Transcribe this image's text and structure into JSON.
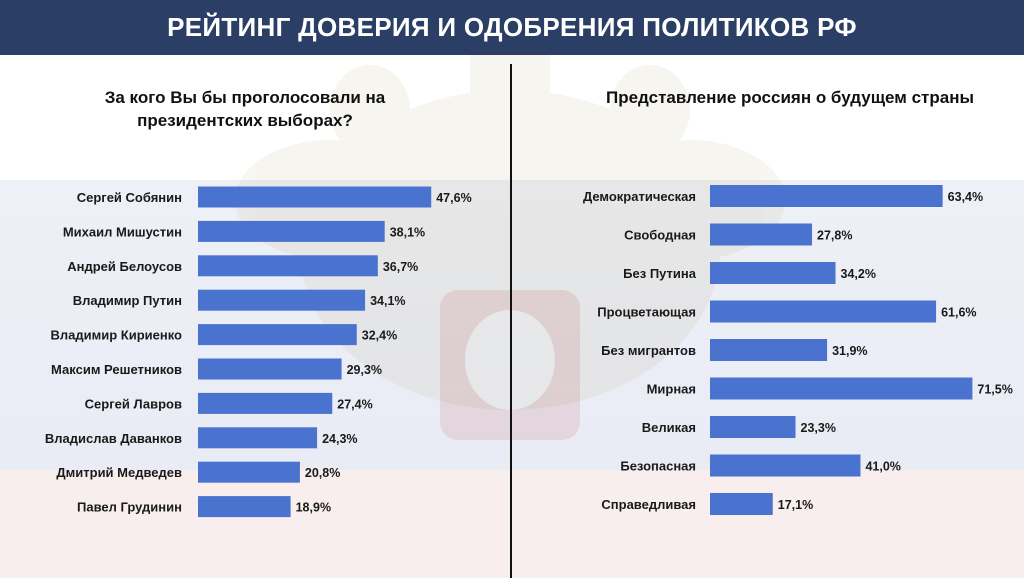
{
  "header": {
    "title": "РЕЙТИНГ ДОВЕРИЯ И ОДОБРЕНИЯ ПОЛИТИКОВ РФ"
  },
  "colors": {
    "header_bg": "#2b3f66",
    "bar": "#4a73cf",
    "text": "#1a1a1a"
  },
  "chart_data": [
    {
      "type": "bar",
      "orientation": "horizontal",
      "title": "За кого Вы бы проголосовали на президентских выборах?",
      "categories": [
        "Сергей Собянин",
        "Михаил Мишустин",
        "Андрей Белоусов",
        "Владимир Путин",
        "Владимир Кириенко",
        "Максим Решетников",
        "Сергей Лавров",
        "Владислав Даванков",
        "Дмитрий Медведев",
        "Павел Грудинин"
      ],
      "values": [
        47.6,
        38.1,
        36.7,
        34.1,
        32.4,
        29.3,
        27.4,
        24.3,
        20.8,
        18.9
      ],
      "value_labels": [
        "47,6%",
        "38,1%",
        "36,7%",
        "34,1%",
        "32,4%",
        "29,3%",
        "27,4%",
        "24,3%",
        "20,8%",
        "18,9%"
      ],
      "xlim": [
        0,
        100
      ],
      "grid": false,
      "legend": "none"
    },
    {
      "type": "bar",
      "orientation": "horizontal",
      "title": "Представление россиян о будущем страны",
      "categories": [
        "Демократическая",
        "Свободная",
        "Без Путина",
        "Процветающая",
        "Без мигрантов",
        "Мирная",
        "Великая",
        "Безопасная",
        "Справедливая"
      ],
      "values": [
        63.4,
        27.8,
        34.2,
        61.6,
        31.9,
        71.5,
        23.3,
        41.0,
        17.1
      ],
      "value_labels": [
        "63,4%",
        "27,8%",
        "34,2%",
        "61,6%",
        "31,9%",
        "71,5%",
        "23,3%",
        "41,0%",
        "17,1%"
      ],
      "xlim": [
        0,
        100
      ],
      "grid": false,
      "legend": "none"
    }
  ]
}
